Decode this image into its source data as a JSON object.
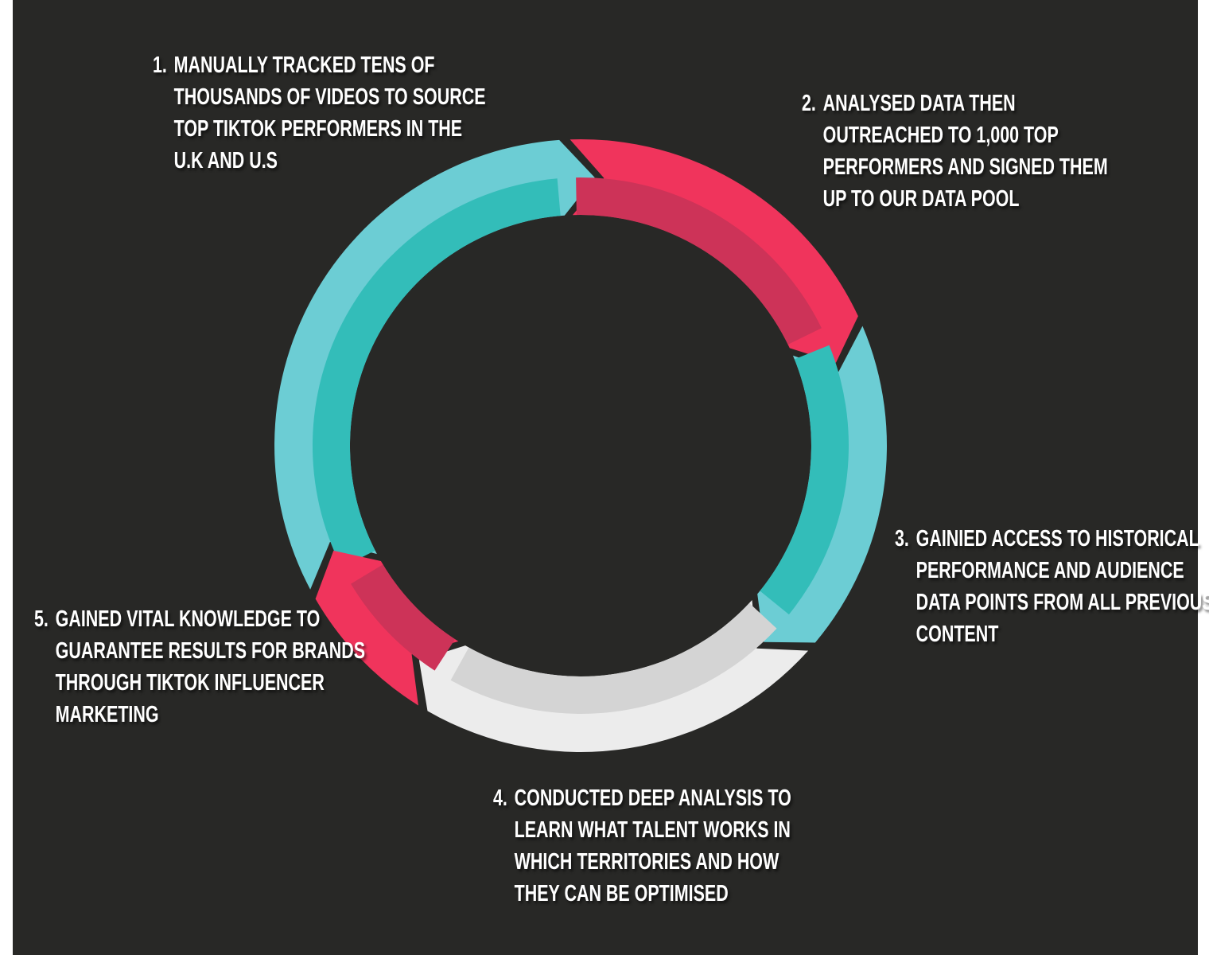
{
  "colors": {
    "background": "#282826",
    "outer_margin": "#ffffff",
    "teal_outer": "#6ccdd4",
    "teal_inner": "#33bdb9",
    "red_outer": "#f0345c",
    "red_inner": "#cd3358",
    "grey_outer": "#ececec",
    "grey_inner": "#d4d4d4"
  },
  "steps": [
    {
      "number": "1.",
      "lines": [
        "MANUALLY TRACKED TENS OF",
        "THOUSANDS OF VIDEOS TO SOURCE",
        "TOP TIKTOK PERFORMERS IN THE",
        "U.K AND U.S"
      ]
    },
    {
      "number": "2.",
      "lines": [
        "ANALYSED DATA THEN",
        "OUTREACHED TO 1,000 TOP",
        "PERFORMERS AND SIGNED THEM",
        "UP TO OUR DATA POOL"
      ]
    },
    {
      "number": "3.",
      "lines": [
        "GAINIED ACCESS TO HISTORICAL",
        "PERFORMANCE AND AUDIENCE",
        "DATA POINTS FROM ALL PREVIOUS",
        "CONTENT"
      ]
    },
    {
      "number": "4.",
      "lines": [
        "CONDUCTED DEEP ANALYSIS TO",
        "LEARN WHAT TALENT WORKS IN",
        "WHICH TERRITORIES AND HOW",
        "THEY CAN BE OPTIMISED"
      ]
    },
    {
      "number": "5.",
      "lines": [
        "GAINED VITAL KNOWLEDGE TO",
        "GUARANTEE RESULTS FOR BRANDS",
        "THROUGH TIKTOK INFLUENCER",
        "MARKETING"
      ]
    }
  ]
}
